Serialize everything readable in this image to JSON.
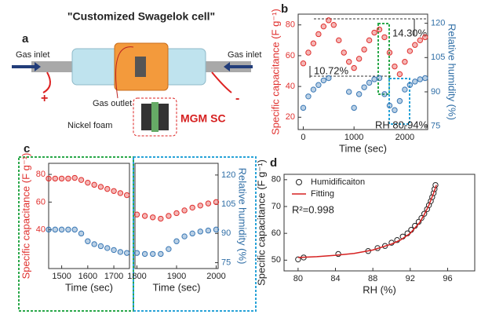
{
  "diagram": {
    "panel": "a",
    "title": "\"Customized Swagelok cell\"",
    "inlet_left": "Gas inlet",
    "inlet_right": "Gas inlet",
    "outlet": "Gas outlet",
    "foam": "Nickel foam",
    "device": "MGM SC",
    "plus": "+",
    "minus": "-"
  },
  "chart_data": [
    {
      "type": "scatter",
      "panel": "b",
      "xlabel": "Time (sec)",
      "ylabel": "Specific capacitance (F g⁻¹)",
      "y2label": "Relative humidity (%)",
      "xlim": [
        -100,
        2450
      ],
      "xticks": [
        0,
        1000,
        2000
      ],
      "ylim": [
        12,
        87
      ],
      "yticks": [
        20,
        40,
        60,
        80
      ],
      "y2lim": [
        73.5,
        124
      ],
      "y2ticks": [
        75,
        90,
        105,
        120
      ],
      "y_color": "#e0302e",
      "y2_color": "#2f6ea6",
      "annotations": [
        "10.72%",
        "14.30%",
        "RH 80-94%"
      ],
      "x": [
        0,
        100,
        200,
        300,
        400,
        500,
        600,
        700,
        800,
        900,
        1000,
        1100,
        1200,
        1300,
        1400,
        1500,
        1600,
        1700,
        1800,
        1900,
        2000,
        2100,
        2200,
        2300,
        2400
      ],
      "series": [
        {
          "type": "scatter",
          "color": "#e0302e",
          "values": [
            55,
            62,
            68,
            74,
            79,
            83,
            80,
            70,
            62,
            56,
            52,
            58,
            64,
            70,
            75,
            77,
            72,
            62,
            53,
            48,
            56,
            63,
            67,
            70,
            72
          ]
        },
        {
          "type": "scatter",
          "color": "#3a78b5",
          "axis": "y2",
          "values": [
            83,
            88,
            91,
            93,
            95,
            96,
            null,
            null,
            null,
            90,
            83,
            89,
            92,
            94,
            95.5,
            96,
            89,
            84,
            82,
            86,
            91,
            93,
            94.5,
            95.5,
            96
          ]
        }
      ]
    },
    {
      "type": "scatter",
      "panel": "c",
      "xlabel": "Time (sec)",
      "ylabel": "Specific capacitance (F g⁻¹)",
      "xlim": [
        1450,
        1760
      ],
      "xticks": [
        1500,
        1600,
        1700
      ],
      "ylim": [
        12,
        88
      ],
      "yticks": [
        40,
        60,
        80
      ],
      "y2lim": [
        72,
        126
      ],
      "y_color": "#e0302e",
      "x": [
        1450,
        1475,
        1500,
        1525,
        1550,
        1575,
        1600,
        1625,
        1650,
        1675,
        1700,
        1725,
        1750
      ],
      "series": [
        {
          "type": "scatter",
          "color": "#e0302e",
          "values": [
            77,
            77,
            77,
            77,
            77.5,
            76,
            74,
            72.5,
            71,
            69.5,
            68,
            66.5,
            65
          ]
        },
        {
          "type": "scatter",
          "color": "#3a78b5",
          "axis": "y2",
          "values": [
            92,
            92,
            92,
            92,
            92,
            90,
            86,
            84.5,
            83.5,
            82.5,
            81.5,
            80.5,
            80
          ]
        }
      ]
    },
    {
      "type": "scatter",
      "xlabel": "Time (sec)",
      "y2label": "Relative humidity (%)",
      "xlim": [
        1795,
        2005
      ],
      "xticks": [
        1800,
        1900,
        2000
      ],
      "ylim": [
        12,
        88
      ],
      "y2lim": [
        72,
        126
      ],
      "y2ticks": [
        75,
        90,
        105,
        120
      ],
      "y2_color": "#2f6ea6",
      "x": [
        1800,
        1820,
        1840,
        1860,
        1880,
        1900,
        1920,
        1940,
        1960,
        1980,
        2000
      ],
      "series": [
        {
          "type": "scatter",
          "color": "#e0302e",
          "values": [
            51,
            50,
            49,
            48,
            50,
            52,
            54,
            56,
            57.5,
            59,
            60
          ]
        },
        {
          "type": "scatter",
          "color": "#3a78b5",
          "axis": "y2",
          "values": [
            80,
            79.5,
            79.5,
            79.5,
            82,
            86,
            88.5,
            90,
            91,
            91.5,
            92
          ]
        }
      ]
    },
    {
      "type": "scatter",
      "panel": "d",
      "xlabel": "RH (%)",
      "ylabel": "Specific capacitance (F g⁻¹)",
      "xlim": [
        78.5,
        98.9
      ],
      "xticks": [
        80,
        84,
        88,
        92,
        96
      ],
      "ylim": [
        46,
        82
      ],
      "yticks": [
        50,
        60,
        70,
        80
      ],
      "legend": "upper left",
      "annotations": [
        "R²=0.998"
      ],
      "series": [
        {
          "type": "scatter",
          "name": "Humidificaiton",
          "color": "#222222",
          "x": [
            80,
            80.6,
            84.3,
            87.5,
            88.5,
            89.3,
            90,
            90.6,
            91.2,
            91.7,
            92.1,
            92.5,
            92.9,
            93.2,
            93.5,
            93.8,
            94,
            94.2,
            94.35,
            94.5,
            94.6,
            94.7
          ],
          "values": [
            50.3,
            51,
            52.3,
            53.4,
            54.5,
            55.3,
            56.5,
            57.5,
            58.8,
            60,
            61.3,
            62.8,
            64.3,
            65.7,
            67.3,
            69,
            70.5,
            72,
            73.5,
            75,
            76.5,
            78
          ]
        },
        {
          "type": "line",
          "name": "Fitting",
          "color": "#d62020",
          "x": [
            80,
            82,
            84,
            86,
            88,
            90,
            91,
            92,
            93,
            93.5,
            94,
            94.5,
            94.8
          ],
          "values": [
            51,
            51.3,
            51.8,
            52.5,
            53.8,
            56,
            57.6,
            60,
            64,
            67,
            70.5,
            75,
            78
          ]
        }
      ]
    }
  ]
}
